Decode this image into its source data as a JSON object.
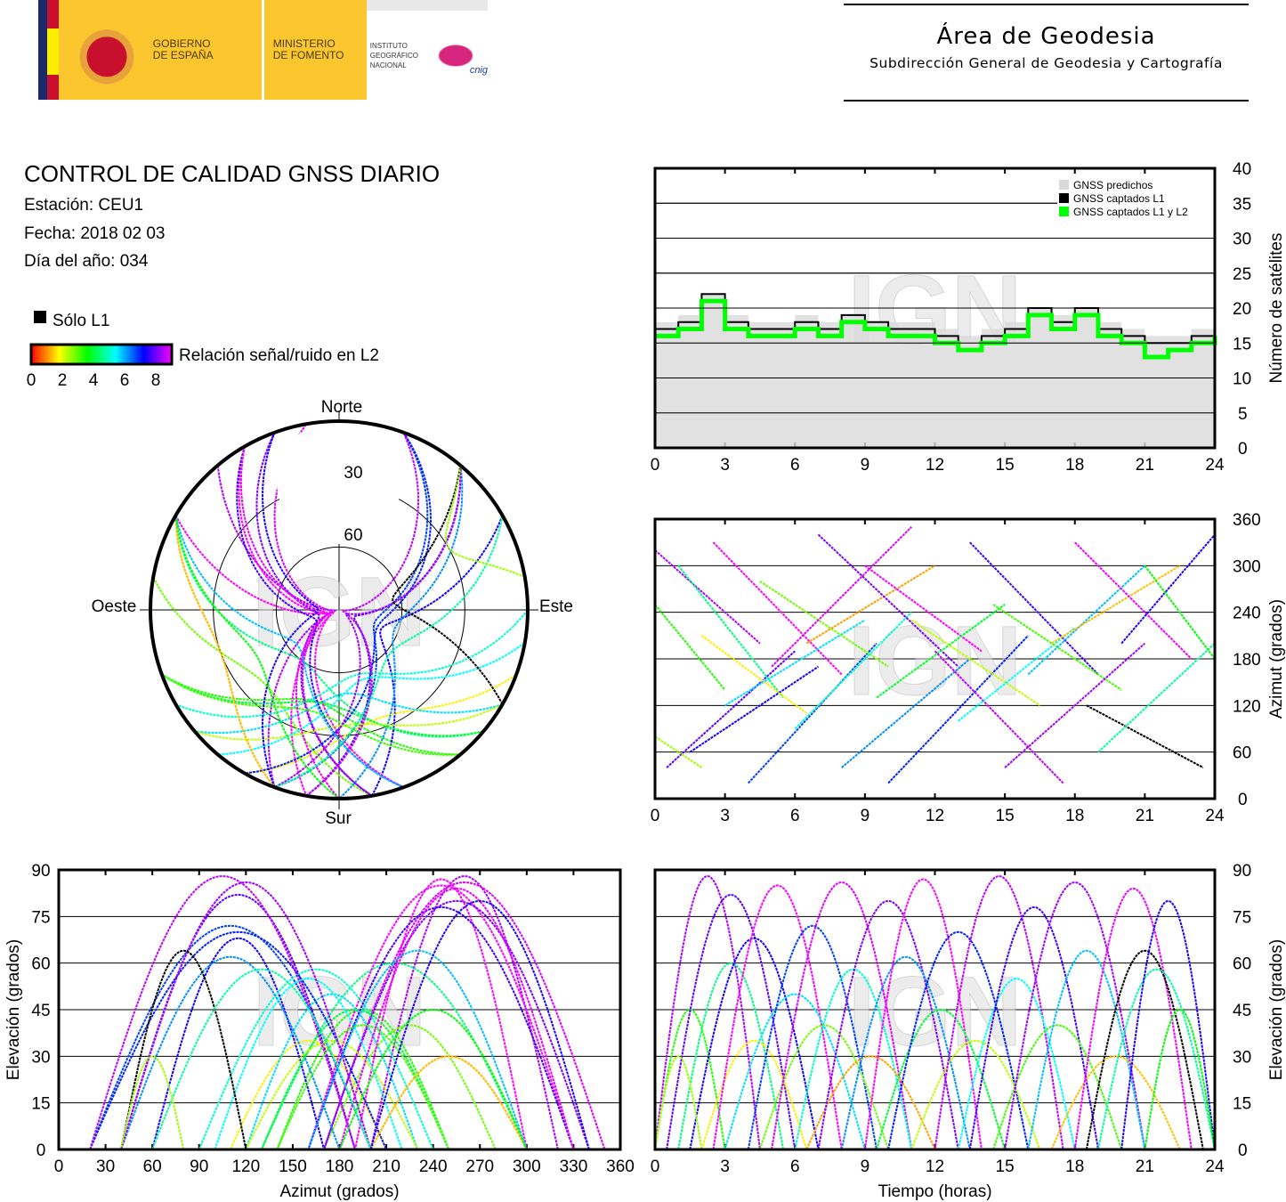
{
  "header": {
    "gobierno": "GOBIERNO\nDE ESPAÑA",
    "ministerio": "MINISTERIO\nDE FOMENTO",
    "instituto": "INSTITUTO\nGEOGRÁFICO\nNACIONAL",
    "cnig": "cnig",
    "area_title": "Área de Geodesia",
    "area_subtitle": "Subdirección General de Geodesia y Cartografía"
  },
  "report": {
    "title": "CONTROL DE CALIDAD GNSS DIARIO",
    "station": "Estación: CEU1",
    "date": "Fecha: 2018 02 03",
    "doy": "Día del año: 034",
    "solo_l1": "Sólo L1",
    "snr_label": "Relación señal/ruido en L2",
    "snr_ticks": [
      "0",
      "2",
      "4",
      "6",
      "8"
    ]
  },
  "watermark": "IGN",
  "chart_data": [
    {
      "id": "satcount",
      "type": "area",
      "x": [
        0,
        1,
        2,
        3,
        4,
        5,
        6,
        7,
        8,
        9,
        10,
        11,
        12,
        13,
        14,
        15,
        16,
        17,
        18,
        19,
        20,
        21,
        22,
        23,
        24
      ],
      "series": [
        {
          "name": "GNSS predichos",
          "color": "#d9d9d9",
          "values": [
            18,
            19,
            22,
            19,
            18,
            18,
            19,
            18,
            19,
            18,
            18,
            18,
            17,
            16,
            17,
            18,
            20,
            19,
            20,
            18,
            17,
            16,
            16,
            17,
            18
          ]
        },
        {
          "name": "GNSS captados L1",
          "color": "#000000",
          "values": [
            17,
            18,
            22,
            18,
            17,
            17,
            18,
            17,
            19,
            18,
            17,
            17,
            16,
            14,
            16,
            17,
            20,
            18,
            20,
            17,
            16,
            15,
            15,
            16,
            17
          ]
        },
        {
          "name": "GNSS captados L1 y L2",
          "color": "#00ff00",
          "values": [
            16,
            17,
            21,
            17,
            16,
            16,
            17,
            16,
            18,
            17,
            16,
            16,
            15,
            14,
            15,
            16,
            19,
            17,
            19,
            16,
            15,
            13,
            14,
            15,
            16
          ]
        }
      ],
      "xticks": [
        "0",
        "3",
        "6",
        "9",
        "12",
        "15",
        "18",
        "21",
        "24"
      ],
      "yticks": [
        "0",
        "5",
        "10",
        "15",
        "20",
        "25",
        "30",
        "35",
        "40"
      ],
      "ylim": [
        0,
        40
      ],
      "xlim": [
        0,
        24
      ],
      "ylabel": "Número de satélites"
    },
    {
      "id": "skyplot",
      "type": "scatter",
      "directions": {
        "north": "Norte",
        "south": "Sur",
        "west": "Oeste",
        "east": "Este"
      },
      "rings": [
        "30",
        "60"
      ]
    },
    {
      "id": "azimuth_time",
      "type": "scatter",
      "xticks": [
        "0",
        "3",
        "6",
        "9",
        "12",
        "15",
        "18",
        "21",
        "24"
      ],
      "yticks": [
        "0",
        "60",
        "120",
        "180",
        "240",
        "300",
        "360"
      ],
      "ylim": [
        0,
        360
      ],
      "xlim": [
        0,
        24
      ],
      "ylabel": "Azimut (grados)"
    },
    {
      "id": "elev_azimuth",
      "type": "scatter",
      "xticks": [
        "0",
        "30",
        "60",
        "90",
        "120",
        "150",
        "180",
        "210",
        "240",
        "270",
        "300",
        "330",
        "360"
      ],
      "yticks": [
        "0",
        "15",
        "30",
        "45",
        "60",
        "75",
        "90"
      ],
      "xlim": [
        0,
        360
      ],
      "ylim": [
        0,
        90
      ],
      "xlabel": "Azimut (grados)",
      "ylabel": "Elevación (grados)"
    },
    {
      "id": "elev_time",
      "type": "scatter",
      "xticks": [
        "0",
        "3",
        "6",
        "9",
        "12",
        "15",
        "18",
        "21",
        "24"
      ],
      "yticks": [
        "0",
        "15",
        "30",
        "45",
        "60",
        "75",
        "90"
      ],
      "xlim": [
        0,
        24
      ],
      "ylim": [
        0,
        90
      ],
      "xlabel": "Tiempo (horas)",
      "ylabel": "Elevación (grados)"
    }
  ],
  "passes_fields": [
    "rise_h",
    "set_h",
    "max_el",
    "az_rise",
    "az_set",
    "snr"
  ],
  "passes": [
    [
      0,
      4.5,
      88,
      320,
      200,
      7.5
    ],
    [
      0,
      3,
      45,
      250,
      140,
      3
    ],
    [
      0.5,
      6,
      82,
      40,
      190,
      7
    ],
    [
      1,
      5.5,
      60,
      300,
      130,
      4
    ],
    [
      1.5,
      7,
      68,
      60,
      170,
      6.5
    ],
    [
      2,
      6.5,
      35,
      210,
      110,
      1.5
    ],
    [
      2.5,
      8,
      85,
      330,
      160,
      8
    ],
    [
      3,
      9,
      50,
      120,
      230,
      5
    ],
    [
      4,
      9.5,
      72,
      20,
      200,
      6
    ],
    [
      4.5,
      10,
      40,
      280,
      170,
      2.5
    ],
    [
      5,
      11,
      86,
      170,
      350,
      7.8
    ],
    [
      6,
      11,
      58,
      90,
      240,
      4.5
    ],
    [
      6.5,
      12,
      30,
      200,
      300,
      1
    ],
    [
      7,
      13,
      80,
      340,
      170,
      7.2
    ],
    [
      8,
      13.5,
      62,
      40,
      180,
      5.5
    ],
    [
      9,
      14,
      87,
      300,
      190,
      8
    ],
    [
      9.5,
      15,
      45,
      130,
      250,
      3.5
    ],
    [
      10,
      16,
      70,
      20,
      210,
      6.2
    ],
    [
      11,
      16.5,
      35,
      230,
      120,
      2
    ],
    [
      12,
      17.5,
      88,
      190,
      20,
      7.6
    ],
    [
      13,
      18,
      55,
      100,
      220,
      4.8
    ],
    [
      13.5,
      19,
      78,
      330,
      160,
      6.8
    ],
    [
      14.5,
      20,
      40,
      250,
      140,
      2.8
    ],
    [
      15,
      21,
      86,
      40,
      200,
      7.4
    ],
    [
      16,
      21,
      64,
      160,
      300,
      5.2
    ],
    [
      17,
      22.5,
      30,
      200,
      300,
      1.2
    ],
    [
      18,
      23,
      84,
      330,
      180,
      7.9
    ],
    [
      18.5,
      23.5,
      64,
      120,
      40,
      0.2
    ],
    [
      19,
      24,
      58,
      60,
      200,
      4.2
    ],
    [
      20,
      24,
      80,
      200,
      340,
      6.6
    ],
    [
      21,
      24,
      45,
      300,
      180,
      3.2
    ],
    [
      0,
      2,
      30,
      80,
      40,
      2.2
    ]
  ]
}
